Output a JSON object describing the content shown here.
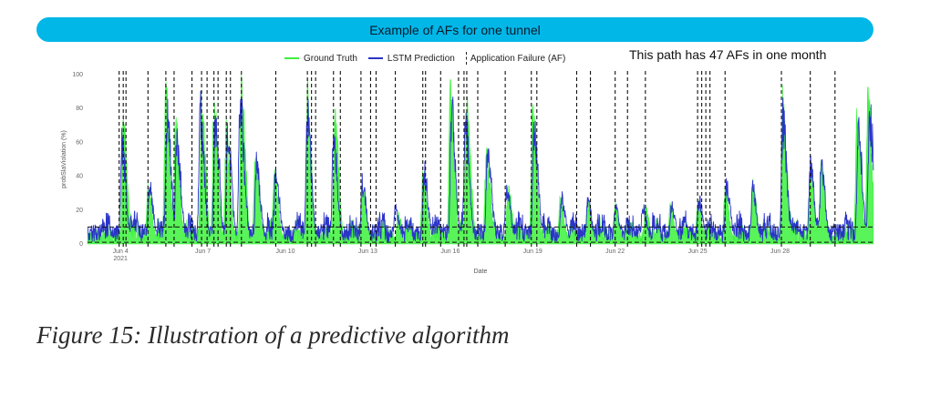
{
  "banner": "Example of AFs for one tunnel",
  "note": "This path has 47 AFs in one month",
  "caption": "Figure 15: Illustration of a predictive algorithm",
  "legend": {
    "ground_truth": "Ground Truth",
    "lstm": "LSTM Prediction",
    "af": "Application Failure (AF)"
  },
  "colors": {
    "ground_truth": "#3cf23c",
    "lstm": "#2b34c9",
    "banner": "#00b7e8",
    "af": "#111111"
  },
  "chart_data": {
    "type": "line",
    "xlabel": "Date",
    "ylabel": "probSlaViolation (%)",
    "ylim": [
      0,
      100
    ],
    "xlim": [
      2.8,
      31.4
    ],
    "y_ticks": [
      0,
      20,
      40,
      60,
      80,
      100
    ],
    "x_ticks": [
      {
        "x": 4,
        "label": "Jun 4",
        "sublabel": "2021"
      },
      {
        "x": 7,
        "label": "Jun 7"
      },
      {
        "x": 10,
        "label": "Jun 10"
      },
      {
        "x": 13,
        "label": "Jun 13"
      },
      {
        "x": 16,
        "label": "Jun 16"
      },
      {
        "x": 19,
        "label": "Jun 19"
      },
      {
        "x": 22,
        "label": "Jun 22"
      },
      {
        "x": 25,
        "label": "Jun 25"
      },
      {
        "x": 28,
        "label": "Jun 28"
      }
    ],
    "horizontal_thresholds": [
      1,
      10
    ],
    "af_lines": [
      3.95,
      4.1,
      4.2,
      5.0,
      5.65,
      5.95,
      6.6,
      6.95,
      7.15,
      7.4,
      7.55,
      7.85,
      8.0,
      8.4,
      9.65,
      10.8,
      10.95,
      11.1,
      11.75,
      12.0,
      12.75,
      13.1,
      13.3,
      14.0,
      15.0,
      15.1,
      15.65,
      16.3,
      16.5,
      16.6,
      17.0,
      18.0,
      18.95,
      19.15,
      20.6,
      21.1,
      22.0,
      22.45,
      23.1,
      25.0,
      25.15,
      25.3,
      25.45,
      26.0,
      28.05,
      29.1,
      30.0
    ],
    "series": [
      {
        "name": "Ground Truth",
        "peaks": [
          [
            4.1,
            80
          ],
          [
            5.0,
            38
          ],
          [
            5.65,
            100
          ],
          [
            6.0,
            80
          ],
          [
            6.95,
            96
          ],
          [
            7.4,
            92
          ],
          [
            7.85,
            78
          ],
          [
            8.4,
            100
          ],
          [
            8.9,
            62
          ],
          [
            9.6,
            45
          ],
          [
            10.8,
            100
          ],
          [
            11.8,
            85
          ],
          [
            12.8,
            38
          ],
          [
            14.1,
            20
          ],
          [
            15.0,
            50
          ],
          [
            16.0,
            100
          ],
          [
            16.6,
            100
          ],
          [
            17.3,
            60
          ],
          [
            18.1,
            38
          ],
          [
            19.0,
            92
          ],
          [
            20.0,
            30
          ],
          [
            21.0,
            28
          ],
          [
            22.0,
            25
          ],
          [
            23.1,
            24
          ],
          [
            24.0,
            25
          ],
          [
            25.0,
            28
          ],
          [
            26.0,
            38
          ],
          [
            27.0,
            40
          ],
          [
            28.1,
            95
          ],
          [
            29.1,
            48
          ],
          [
            29.5,
            50
          ],
          [
            30.8,
            90
          ],
          [
            31.2,
            100
          ]
        ]
      },
      {
        "name": "LSTM Prediction",
        "peaks": [
          [
            4.05,
            70
          ],
          [
            5.05,
            40
          ],
          [
            5.7,
            90
          ],
          [
            6.05,
            75
          ],
          [
            6.9,
            93
          ],
          [
            7.45,
            85
          ],
          [
            7.9,
            75
          ],
          [
            8.35,
            98
          ],
          [
            8.95,
            55
          ],
          [
            9.65,
            48
          ],
          [
            10.8,
            90
          ],
          [
            11.75,
            75
          ],
          [
            12.8,
            42
          ],
          [
            14.0,
            25
          ],
          [
            15.05,
            50
          ],
          [
            16.05,
            92
          ],
          [
            16.55,
            82
          ],
          [
            17.35,
            58
          ],
          [
            18.05,
            40
          ],
          [
            19.05,
            85
          ],
          [
            20.05,
            32
          ],
          [
            21.0,
            30
          ],
          [
            22.0,
            26
          ],
          [
            23.0,
            26
          ],
          [
            24.05,
            26
          ],
          [
            25.05,
            30
          ],
          [
            26.05,
            40
          ],
          [
            27.0,
            38
          ],
          [
            28.1,
            88
          ],
          [
            29.1,
            55
          ],
          [
            29.5,
            50
          ],
          [
            30.85,
            80
          ],
          [
            31.25,
            92
          ]
        ]
      }
    ]
  }
}
